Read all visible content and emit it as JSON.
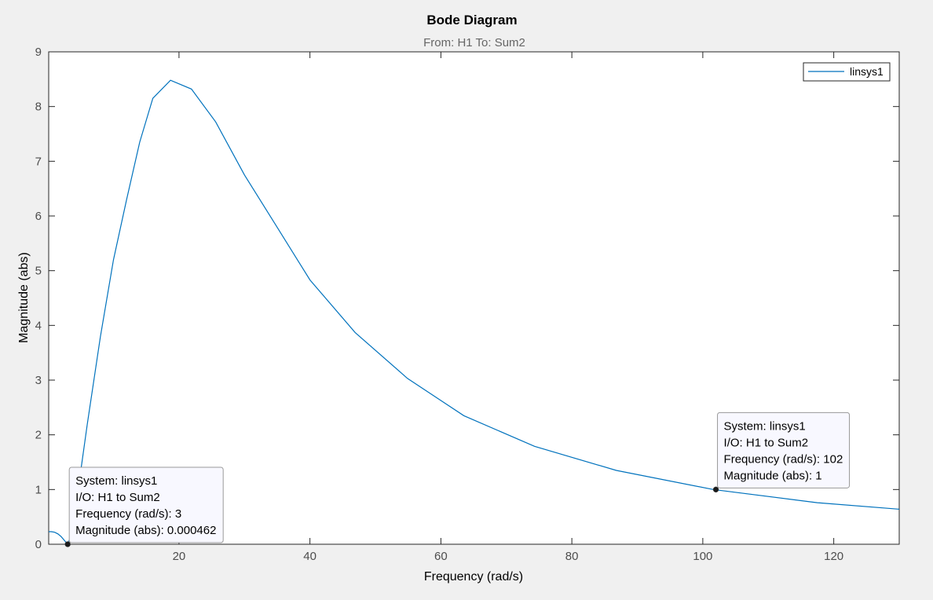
{
  "colors": {
    "background": "#f0f0f0",
    "axes_background": "#ffffff",
    "axis_lines": "#262626",
    "tick_labels": "#4d4d4d",
    "grid": "#e6e6e6",
    "series": "#0072bd",
    "datatip_background": "#f8f8ff",
    "datatip_border": "#999999",
    "marker": "#1a1a1a"
  },
  "chart_data": {
    "type": "line",
    "title": "Bode Diagram",
    "subtitle": "From: H1  To: Sum2",
    "xlabel": "Frequency  (rad/s)",
    "ylabel": "Magnitude (abs)",
    "xlim": [
      0.1,
      130
    ],
    "ylim": [
      0,
      9
    ],
    "xticks": [
      20,
      40,
      60,
      80,
      100,
      120
    ],
    "yticks": [
      0,
      1,
      2,
      3,
      4,
      5,
      6,
      7,
      8,
      9
    ],
    "grid": false,
    "legend": {
      "position": "top-right",
      "entries": [
        "linsys1"
      ]
    },
    "series": [
      {
        "name": "linsys1",
        "x": [
          0.1,
          0.5,
          1.0,
          1.5,
          2.0,
          2.5,
          3.0,
          3.5,
          4.0,
          5.0,
          6.0,
          8.0,
          10.0,
          12.0,
          14.0,
          16.0,
          18.7,
          21.9,
          25.6,
          30.0,
          34.8,
          40.0,
          46.9,
          54.9,
          63.5,
          74.3,
          86.8,
          101.6,
          117.5,
          130.0
        ],
        "y": [
          0.23,
          0.23,
          0.22,
          0.19,
          0.14,
          0.07,
          0.000462,
          0.15,
          0.6,
          1.35,
          2.2,
          3.8,
          5.2,
          6.3,
          7.35,
          8.15,
          8.48,
          8.32,
          7.72,
          6.75,
          5.83,
          4.83,
          3.87,
          3.03,
          2.35,
          1.79,
          1.35,
          1.0,
          0.76,
          0.64
        ]
      }
    ],
    "datatips": [
      {
        "x": 3,
        "y": 0.000462,
        "lines": [
          "System: linsys1",
          "I/O: H1 to Sum2",
          "Frequency (rad/s): 3",
          "Magnitude (abs): 0.000462"
        ]
      },
      {
        "x": 102,
        "y": 1,
        "lines": [
          "System: linsys1",
          "I/O: H1 to Sum2",
          "Frequency (rad/s): 102",
          "Magnitude (abs): 1"
        ]
      }
    ]
  }
}
